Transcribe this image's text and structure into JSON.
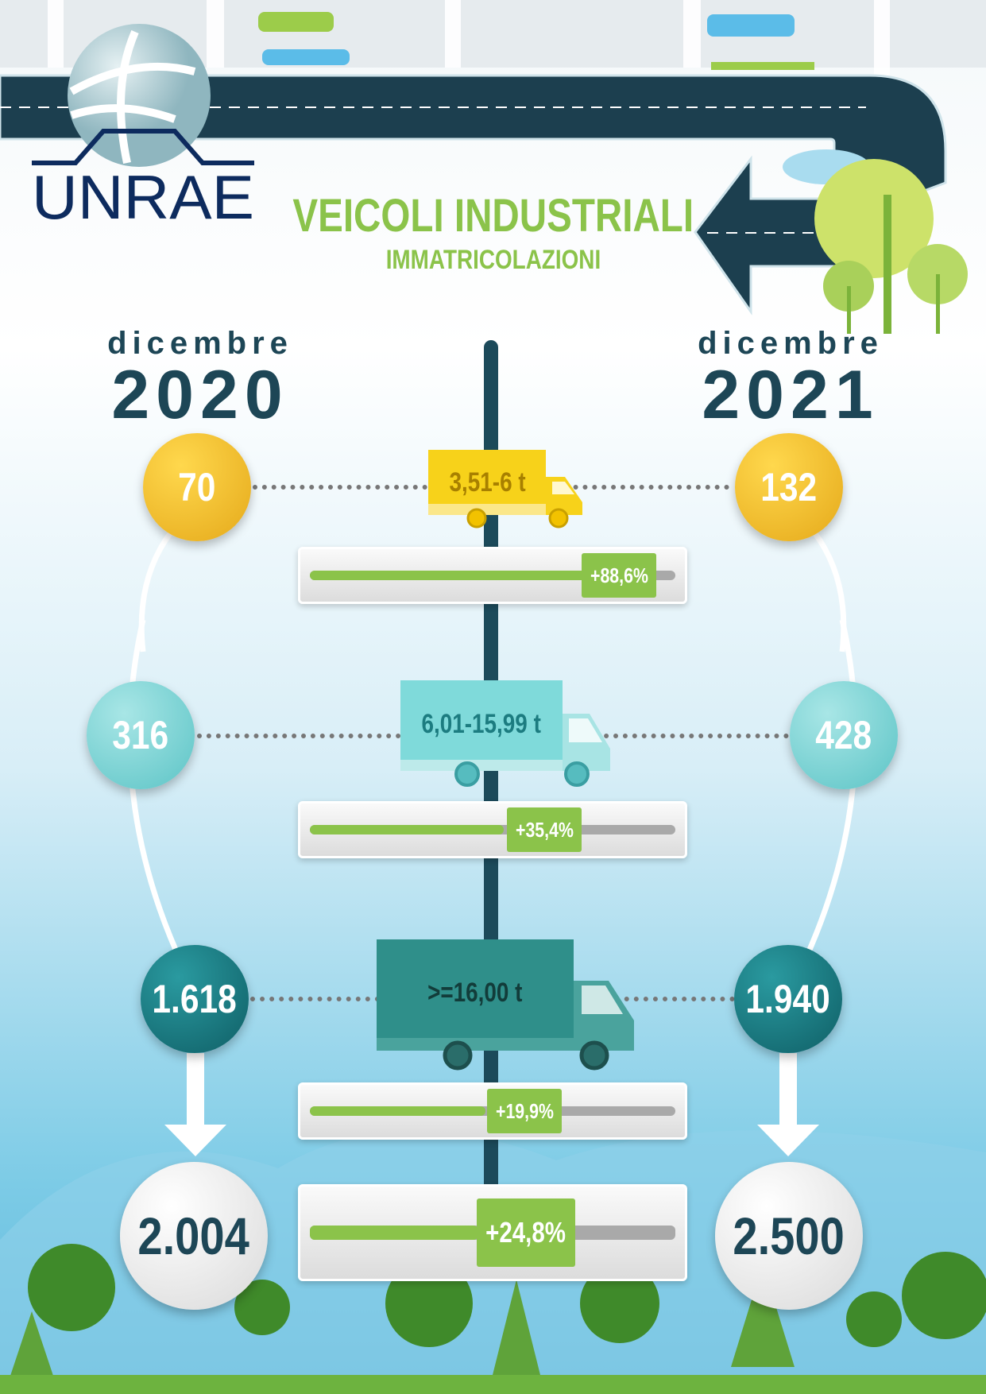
{
  "brand": {
    "logo_text": "UNRAE",
    "color": "#0d2b5e"
  },
  "header": {
    "title": "VEICOLI INDUSTRIALI",
    "subtitle": "IMMATRICOLAZIONI",
    "accent": "#8bc34a"
  },
  "periods": [
    {
      "month": "dicembre",
      "year": "2020"
    },
    {
      "month": "dicembre",
      "year": "2021"
    }
  ],
  "rows": [
    {
      "category": "3,51-6 t",
      "value_2020": "70",
      "value_2021": "132",
      "change": "+88,6%",
      "change_pct": 88.6,
      "color": "#f5c020"
    },
    {
      "category": "6,01-15,99 t",
      "value_2020": "316",
      "value_2021": "428",
      "change": "+35,4%",
      "change_pct": 35.4,
      "color": "#7fd3d3"
    },
    {
      "category": ">=16,00 t",
      "value_2020": "1.618",
      "value_2021": "1.940",
      "change": "+19,9%",
      "change_pct": 19.9,
      "color": "#1a7b80"
    }
  ],
  "total": {
    "value_2020": "2.004",
    "value_2021": "2.500",
    "change": "+24,8%",
    "change_pct": 24.8
  }
}
